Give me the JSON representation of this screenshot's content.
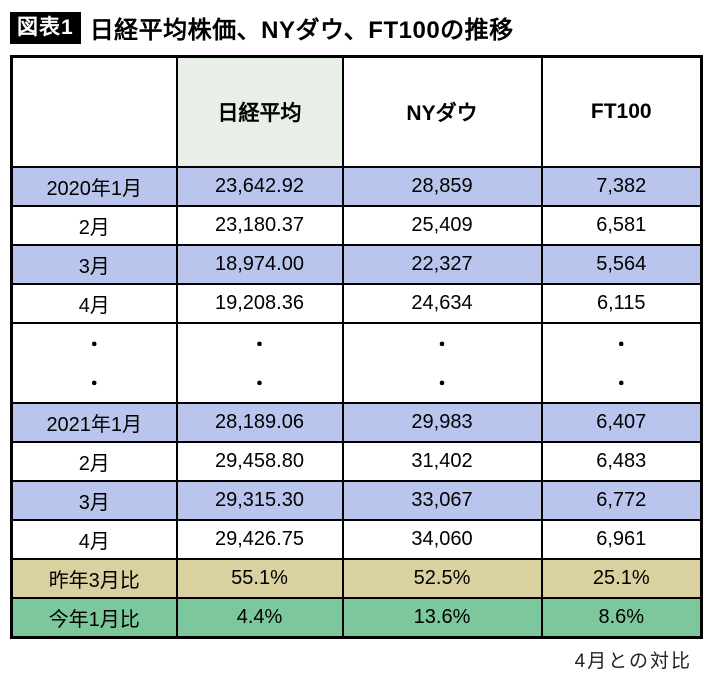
{
  "title": {
    "badge": "図表1",
    "text": "日経平均株価、NYダウ、FT100の推移"
  },
  "footnote": "4月との対比",
  "colors": {
    "row_blue": "#b9c5ec",
    "row_tan": "#d9d1a0",
    "row_green": "#7cc89c",
    "header_highlight": "#e8efe6",
    "border": "#000000"
  },
  "chart_data": {
    "type": "table",
    "title": "日経平均株価、NYダウ、FT100の推移",
    "columns": [
      "",
      "日経平均",
      "NYダウ",
      "FT100"
    ],
    "rows": [
      {
        "label": "2020年1月",
        "values": [
          "23,642.92",
          "28,859",
          "7,382"
        ],
        "highlight": "blue"
      },
      {
        "label": "2月",
        "values": [
          "23,180.37",
          "25,409",
          "6,581"
        ],
        "highlight": "none"
      },
      {
        "label": "3月",
        "values": [
          "18,974.00",
          "22,327",
          "5,564"
        ],
        "highlight": "blue"
      },
      {
        "label": "4月",
        "values": [
          "19,208.36",
          "24,634",
          "6,115"
        ],
        "highlight": "none"
      },
      {
        "label": "・",
        "values": [
          "・",
          "・",
          "・"
        ],
        "highlight": "dots"
      },
      {
        "label": "・",
        "values": [
          "・",
          "・",
          "・"
        ],
        "highlight": "dots"
      },
      {
        "label": "2021年1月",
        "values": [
          "28,189.06",
          "29,983",
          "6,407"
        ],
        "highlight": "blue"
      },
      {
        "label": "2月",
        "values": [
          "29,458.80",
          "31,402",
          "6,483"
        ],
        "highlight": "none"
      },
      {
        "label": "3月",
        "values": [
          "29,315.30",
          "33,067",
          "6,772"
        ],
        "highlight": "blue"
      },
      {
        "label": "4月",
        "values": [
          "29,426.75",
          "34,060",
          "6,961"
        ],
        "highlight": "none"
      },
      {
        "label": "昨年3月比",
        "values": [
          "55.1%",
          "52.5%",
          "25.1%"
        ],
        "highlight": "tan"
      },
      {
        "label": "今年1月比",
        "values": [
          "4.4%",
          "13.6%",
          "8.6%"
        ],
        "highlight": "green"
      }
    ],
    "footnote": "4月との対比"
  }
}
